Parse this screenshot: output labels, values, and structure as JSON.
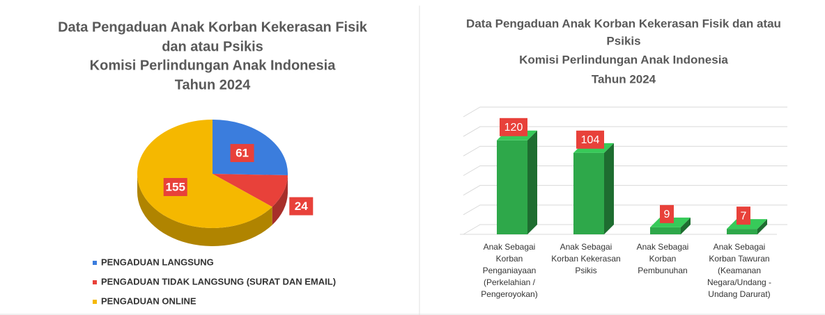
{
  "chart_data": [
    {
      "type": "pie",
      "title": [
        "Data Pengaduan Anak Korban Kekerasan Fisik",
        "dan atau Psikis",
        "Komisi Perlindungan Anak Indonesia",
        "Tahun 2024"
      ],
      "categories": [
        "PENGADUAN LANGSUNG",
        "PENGADUAN TIDAK LANGSUNG (SURAT DAN EMAIL)",
        "PENGADUAN ONLINE"
      ],
      "values": [
        61,
        24,
        155
      ],
      "colors": [
        "#3b7ddd",
        "#e8413a",
        "#f5b800"
      ],
      "legend": "bottom"
    },
    {
      "type": "bar",
      "title": [
        "Data Pengaduan Anak Korban Kekerasan Fisik dan atau",
        "Psikis",
        "Komisi Perlindungan Anak Indonesia",
        "Tahun 2024"
      ],
      "categories": [
        [
          "Anak Sebagai",
          "Korban",
          "Penganiayaan",
          "(Perkelahian /",
          "Pengeroyokan)"
        ],
        [
          "Anak Sebagai",
          "Korban Kekerasan",
          "Psikis"
        ],
        [
          "Anak Sebagai",
          "Korban",
          "Pembunuhan"
        ],
        [
          "Anak Sebagai",
          "Korban Tawuran",
          "(Keamanan",
          "Negara/Undang -",
          "Undang Darurat)"
        ]
      ],
      "values": [
        120,
        104,
        9,
        7
      ],
      "color": "#2ea84a",
      "ylim": [
        0,
        150
      ],
      "yticks": [
        0,
        25,
        50,
        75,
        100,
        125,
        150
      ],
      "grid": true
    }
  ]
}
